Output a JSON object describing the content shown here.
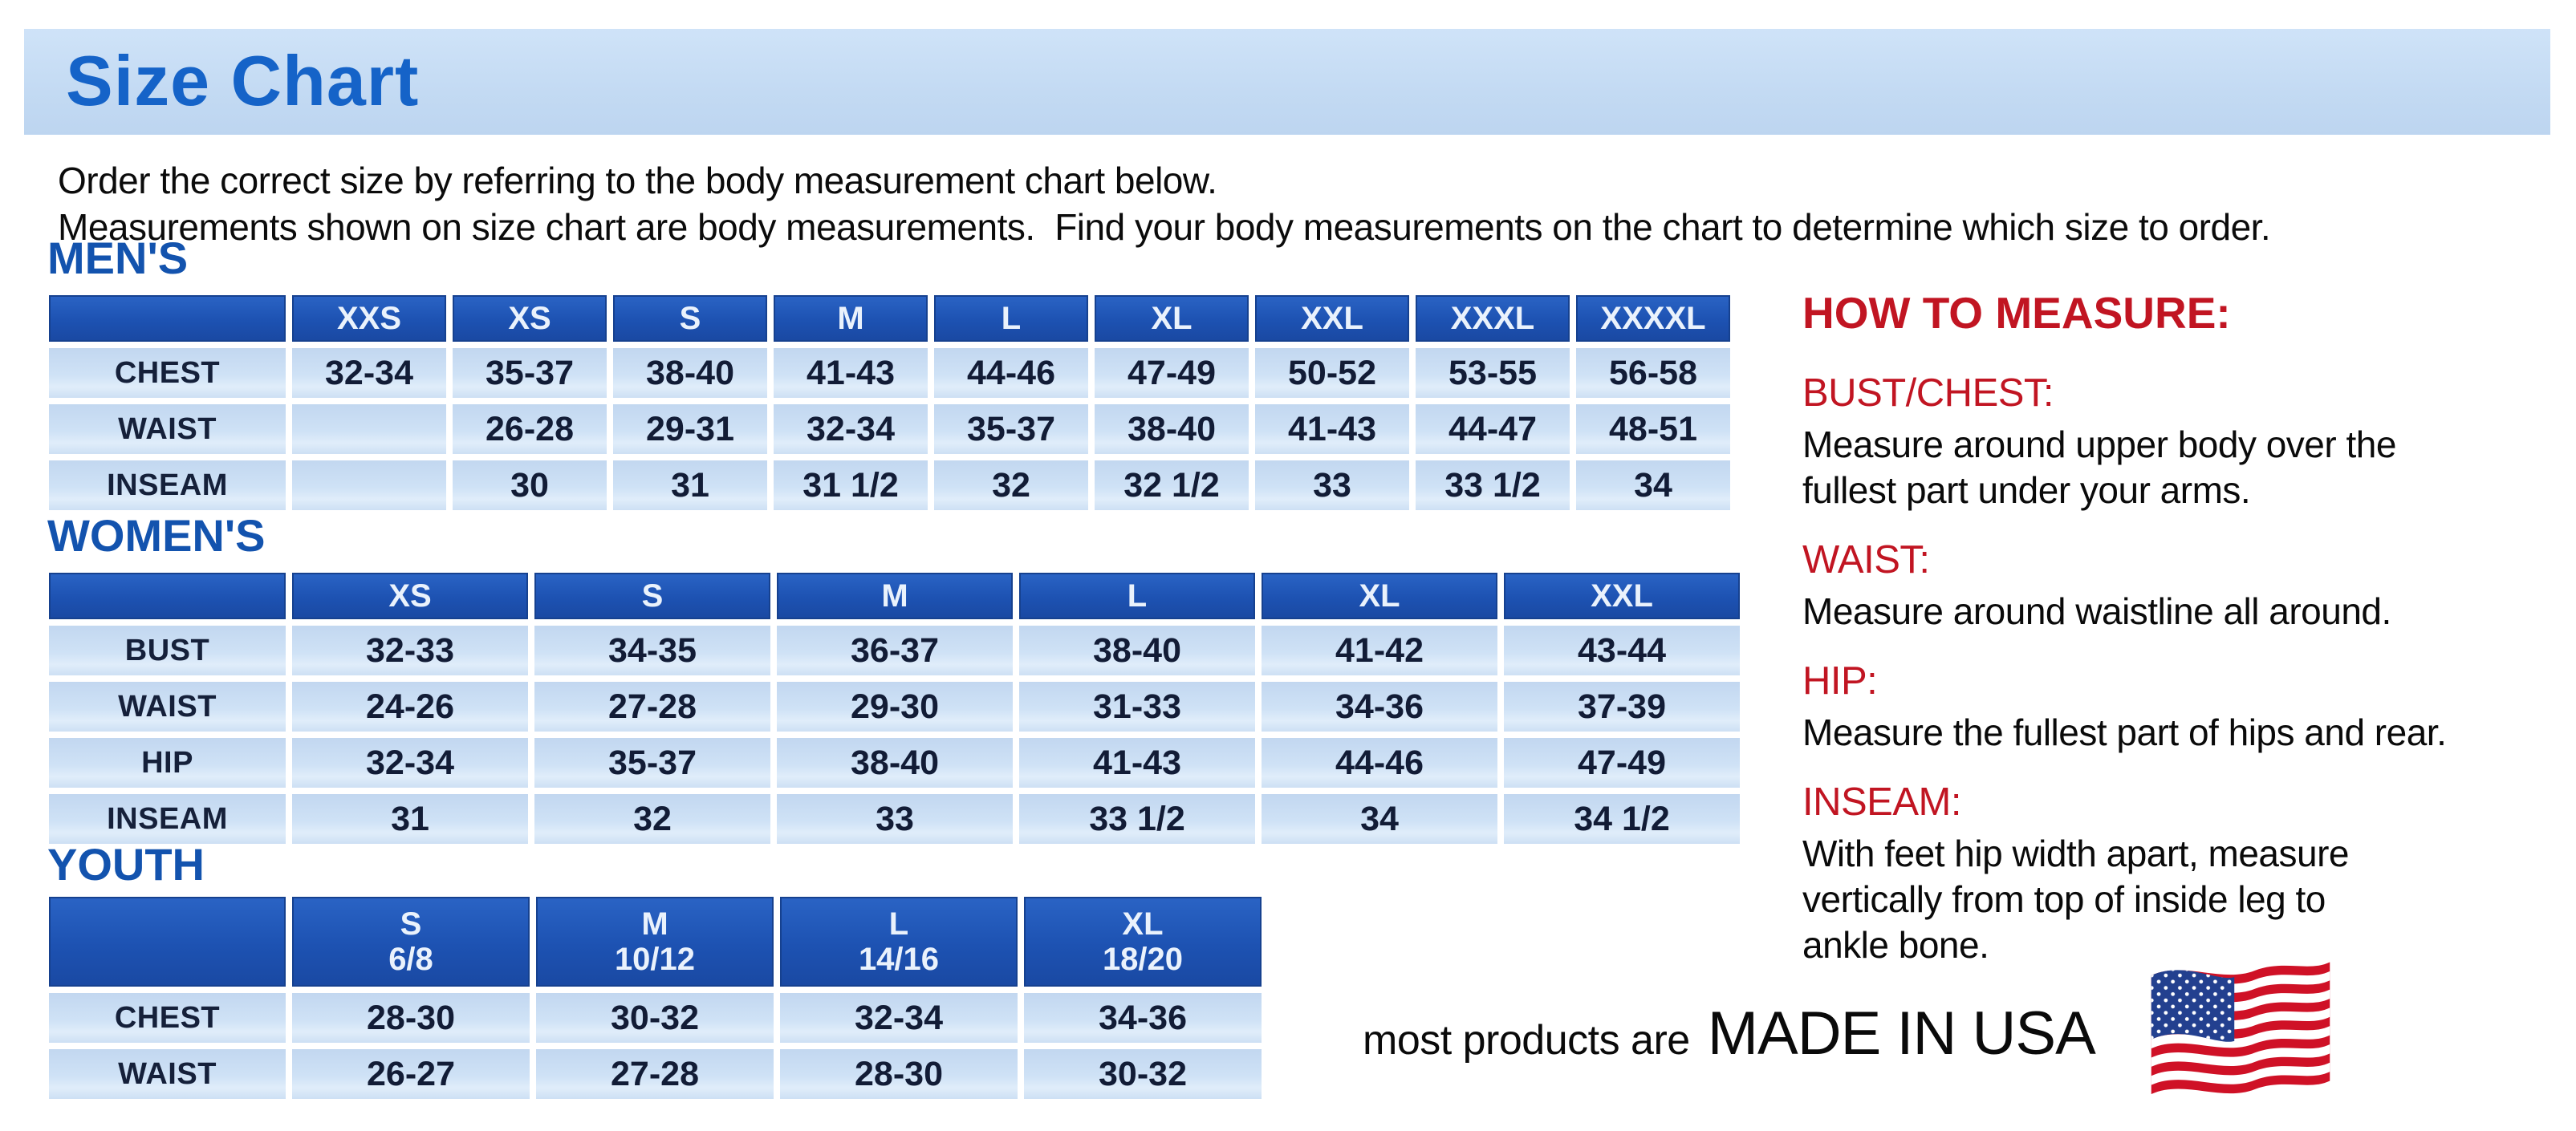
{
  "title": "Size Chart",
  "intro": {
    "line1": "Order the correct size by referring to the body measurement chart below.",
    "line2": "Measurements shown on size chart are body measurements.  Find your body measurements on the chart to determine which size to order."
  },
  "tables": {
    "mens": {
      "heading": "MEN'S",
      "columns": [
        "XXS",
        "XS",
        "S",
        "M",
        "L",
        "XL",
        "XXL",
        "XXXL",
        "XXXXL"
      ],
      "rows": [
        {
          "label": "CHEST",
          "values": [
            "32-34",
            "35-37",
            "38-40",
            "41-43",
            "44-46",
            "47-49",
            "50-52",
            "53-55",
            "56-58"
          ]
        },
        {
          "label": "WAIST",
          "values": [
            "",
            "26-28",
            "29-31",
            "32-34",
            "35-37",
            "38-40",
            "41-43",
            "44-47",
            "48-51"
          ]
        },
        {
          "label": "INSEAM",
          "values": [
            "",
            "30",
            "31",
            "31 1/2",
            "32",
            "32 1/2",
            "33",
            "33 1/2",
            "34"
          ]
        }
      ]
    },
    "womens": {
      "heading": "WOMEN'S",
      "columns": [
        "XS",
        "S",
        "M",
        "L",
        "XL",
        "XXL"
      ],
      "rows": [
        {
          "label": "BUST",
          "values": [
            "32-33",
            "34-35",
            "36-37",
            "38-40",
            "41-42",
            "43-44"
          ]
        },
        {
          "label": "WAIST",
          "values": [
            "24-26",
            "27-28",
            "29-30",
            "31-33",
            "34-36",
            "37-39"
          ]
        },
        {
          "label": "HIP",
          "values": [
            "32-34",
            "35-37",
            "38-40",
            "41-43",
            "44-46",
            "47-49"
          ]
        },
        {
          "label": "INSEAM",
          "values": [
            "31",
            "32",
            "33",
            "33 1/2",
            "34",
            "34 1/2"
          ]
        }
      ]
    },
    "youth": {
      "heading": "YOUTH",
      "columns": [
        "S\n6/8",
        "M\n10/12",
        "L\n14/16",
        "XL\n18/20"
      ],
      "rows": [
        {
          "label": "CHEST",
          "values": [
            "28-30",
            "30-32",
            "32-34",
            "34-36"
          ]
        },
        {
          "label": "WAIST",
          "values": [
            "26-27",
            "27-28",
            "28-30",
            "30-32"
          ]
        }
      ]
    }
  },
  "how_to_measure": {
    "heading": "HOW TO MEASURE:",
    "sections": [
      {
        "label": "BUST/CHEST:",
        "text": "Measure around upper body over the\nfullest part under your arms."
      },
      {
        "label": "WAIST:",
        "text": "Measure around waistline all around."
      },
      {
        "label": "HIP:",
        "text": "Measure the fullest part of hips and rear."
      },
      {
        "label": "INSEAM:",
        "text": "With feet hip width apart, measure\nvertically from top of inside leg to\nankle bone."
      }
    ]
  },
  "footer": {
    "prefix": "most products are",
    "emphasis": "MADE IN USA",
    "flag_icon": "us-flag-icon"
  },
  "colors": {
    "title_blue": "#1563c8",
    "heading_blue": "#1353ae",
    "table_header_blue": "#1d52b2",
    "cell_light_blue": "#cde0f4",
    "accent_red": "#c11522",
    "flag_red": "#cf1126",
    "flag_canton_blue": "#23408f"
  }
}
